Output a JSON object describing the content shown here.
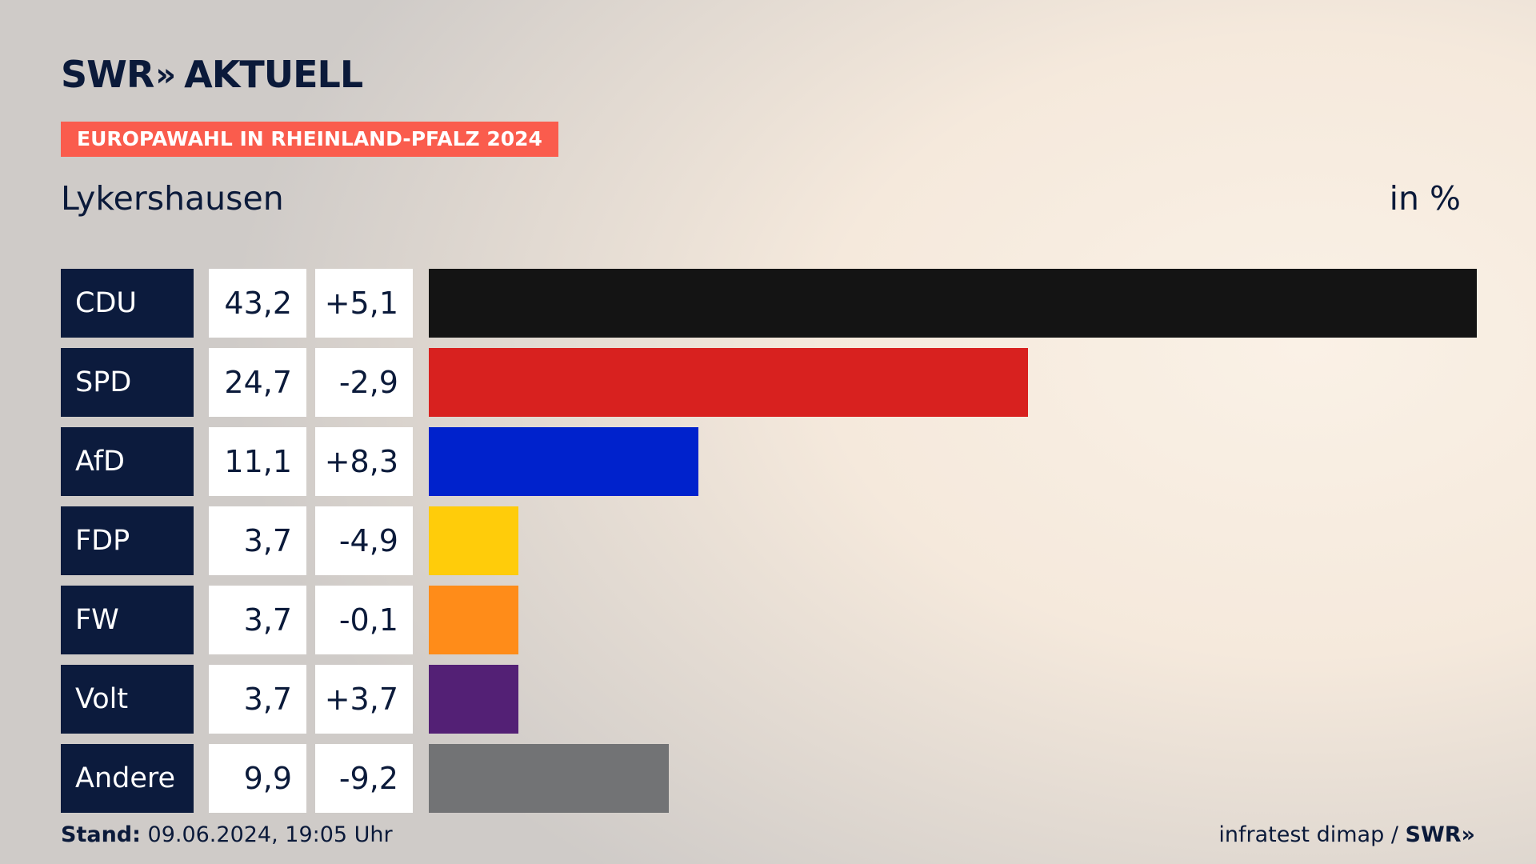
{
  "brand": {
    "name": "SWR",
    "arrows": "»",
    "product": "AKTUELL"
  },
  "badge": "EUROPAWAHL IN RHEINLAND-PFALZ 2024",
  "location": "Lykershausen",
  "unit": "in %",
  "footer": {
    "stand_label": "Stand:",
    "stand_value": "09.06.2024, 19:05 Uhr",
    "source": "infratest dimap /",
    "source_brand": "SWR",
    "source_arrows": "»"
  },
  "chart_data": {
    "type": "bar",
    "orientation": "horizontal",
    "categories": [
      "CDU",
      "SPD",
      "AfD",
      "FDP",
      "FW",
      "Volt",
      "Andere"
    ],
    "values": [
      43.2,
      24.7,
      11.1,
      3.7,
      3.7,
      3.7,
      9.9
    ],
    "value_labels": [
      "43,2",
      "24,7",
      "11,1",
      "3,7",
      "3,7",
      "3,7",
      "9,9"
    ],
    "changes": [
      5.1,
      -2.9,
      8.3,
      -4.9,
      -0.1,
      3.7,
      -9.2
    ],
    "change_labels": [
      "+5,1",
      "-2,9",
      "+8,3",
      "-4,9",
      "-0,1",
      "+3,7",
      "-9,2"
    ],
    "colors": [
      "#141414",
      "#d8211f",
      "#0022cc",
      "#ffcc0a",
      "#ff8c19",
      "#532075",
      "#727375"
    ],
    "xlim": [
      0,
      43.2
    ],
    "title": "Lykershausen",
    "unit": "in %"
  }
}
